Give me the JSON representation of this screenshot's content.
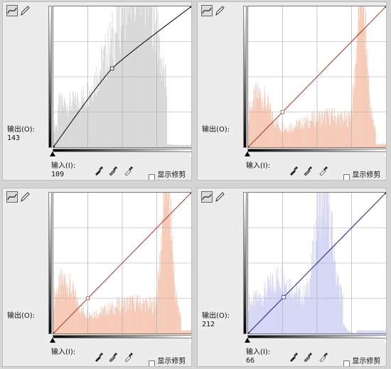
{
  "common": {
    "output_label": "输出(O):",
    "input_label": "输入(I):",
    "clip_label": "显示修剪(W)"
  },
  "panels": [
    {
      "id": "tl",
      "output_value": "143",
      "input_value": "109",
      "curve_color": "#111111",
      "hist_color": "#d6d6d6",
      "curve_points": [
        [
          0,
          0
        ],
        [
          109,
          143
        ],
        [
          255,
          255
        ]
      ],
      "histogram": "gray"
    },
    {
      "id": "tr",
      "output_value": "",
      "input_value": "",
      "curve_color": "#b04030",
      "hist_color": "#f6c8b4",
      "curve_points": [
        [
          0,
          0
        ],
        [
          255,
          255
        ]
      ],
      "histogram": "warm"
    },
    {
      "id": "bl",
      "output_value": "",
      "input_value": "",
      "curve_color": "#b04030",
      "hist_color": "#f6c8b4",
      "curve_points": [
        [
          0,
          0
        ],
        [
          255,
          255
        ]
      ],
      "histogram": "warm"
    },
    {
      "id": "br",
      "output_value": "212",
      "input_value": "66",
      "curve_color": "#2a2a8a",
      "hist_color": "#d4d4f6",
      "curve_points": [
        [
          0,
          0
        ],
        [
          255,
          255
        ]
      ],
      "histogram": "blue"
    }
  ],
  "icons": {
    "curve_tool": "curve-icon",
    "pencil_tool": "pencil-icon",
    "black_point": "eyedropper-black-icon",
    "gray_point": "eyedropper-gray-icon",
    "white_point": "eyedropper-white-icon"
  }
}
